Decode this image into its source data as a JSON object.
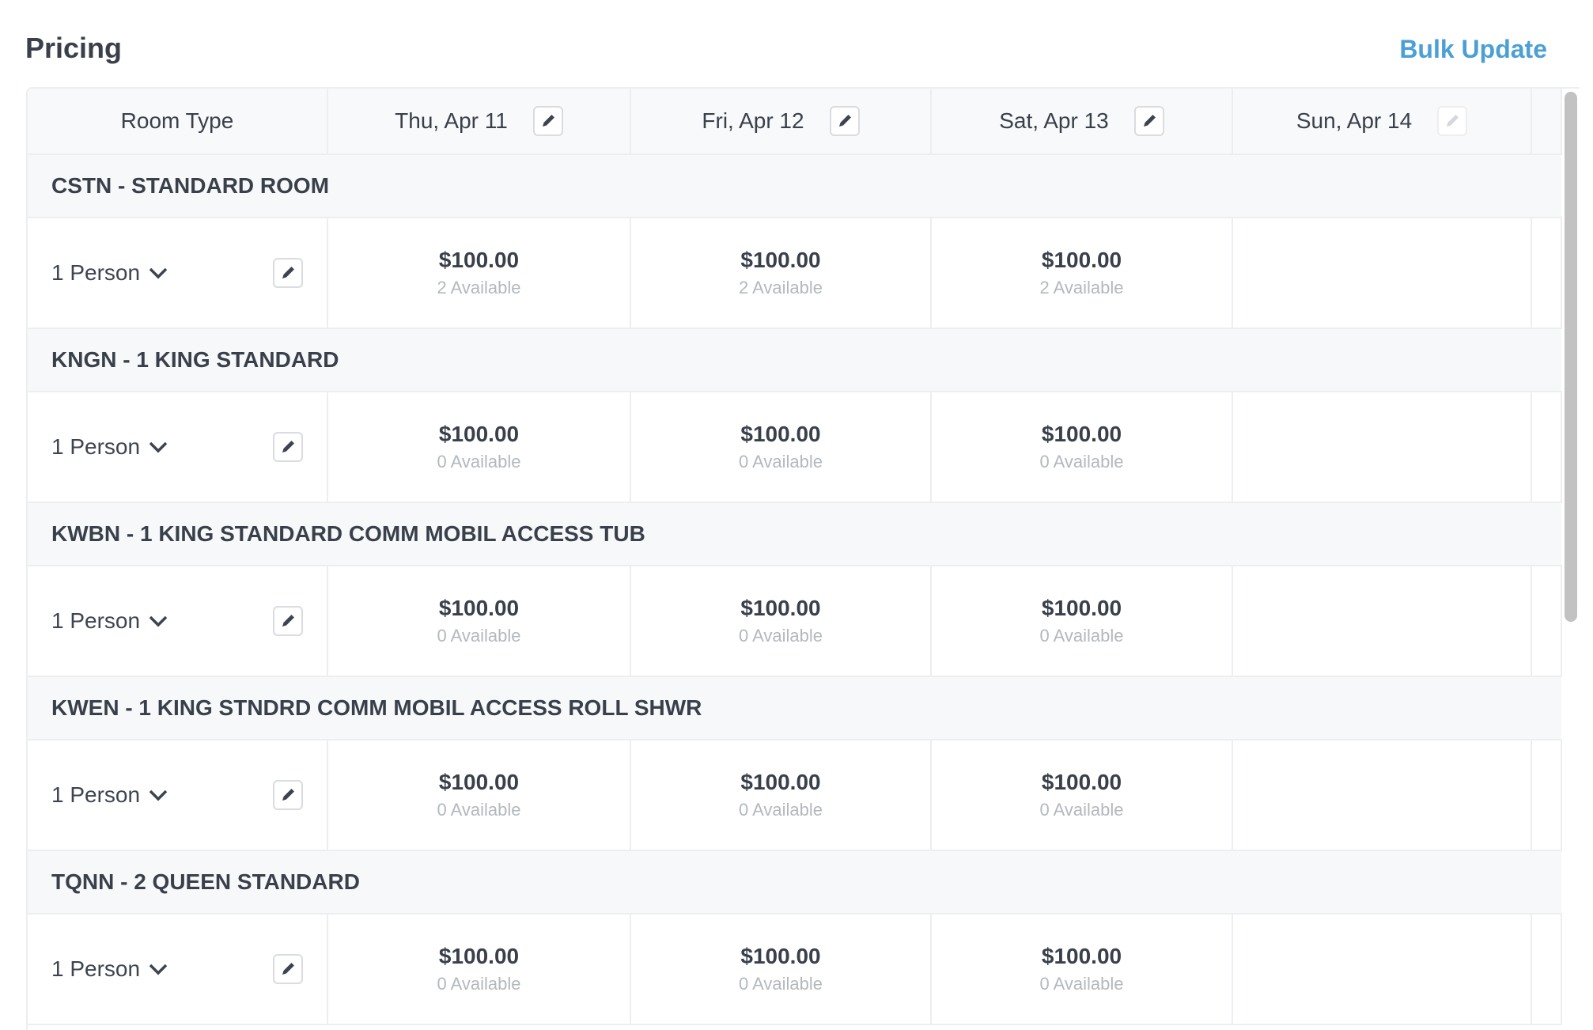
{
  "header": {
    "title": "Pricing",
    "bulk_update": "Bulk Update"
  },
  "table": {
    "room_type_header": "Room Type",
    "dates": [
      {
        "label": "Thu, Apr 11",
        "editable": true
      },
      {
        "label": "Fri, Apr 12",
        "editable": true
      },
      {
        "label": "Sat, Apr 13",
        "editable": true
      },
      {
        "label": "Sun, Apr 14",
        "editable": false
      }
    ],
    "groups": [
      {
        "name": "CSTN - STANDARD ROOM",
        "rate": "1 Person",
        "cells": [
          {
            "price": "$100.00",
            "avail": "2 Available"
          },
          {
            "price": "$100.00",
            "avail": "2 Available"
          },
          {
            "price": "$100.00",
            "avail": "2 Available"
          },
          {
            "price": "",
            "avail": ""
          }
        ]
      },
      {
        "name": "KNGN - 1 KING STANDARD",
        "rate": "1 Person",
        "cells": [
          {
            "price": "$100.00",
            "avail": "0 Available"
          },
          {
            "price": "$100.00",
            "avail": "0 Available"
          },
          {
            "price": "$100.00",
            "avail": "0 Available"
          },
          {
            "price": "",
            "avail": ""
          }
        ]
      },
      {
        "name": "KWBN - 1 KING STANDARD COMM MOBIL ACCESS TUB",
        "rate": "1 Person",
        "cells": [
          {
            "price": "$100.00",
            "avail": "0 Available"
          },
          {
            "price": "$100.00",
            "avail": "0 Available"
          },
          {
            "price": "$100.00",
            "avail": "0 Available"
          },
          {
            "price": "",
            "avail": ""
          }
        ]
      },
      {
        "name": "KWEN - 1 KING STNDRD COMM MOBIL ACCESS ROLL SHWR",
        "rate": "1 Person",
        "cells": [
          {
            "price": "$100.00",
            "avail": "0 Available"
          },
          {
            "price": "$100.00",
            "avail": "0 Available"
          },
          {
            "price": "$100.00",
            "avail": "0 Available"
          },
          {
            "price": "",
            "avail": ""
          }
        ]
      },
      {
        "name": "TQNN - 2 QUEEN STANDARD",
        "rate": "1 Person",
        "cells": [
          {
            "price": "$100.00",
            "avail": "0 Available"
          },
          {
            "price": "$100.00",
            "avail": "0 Available"
          },
          {
            "price": "$100.00",
            "avail": "0 Available"
          },
          {
            "price": "",
            "avail": ""
          }
        ]
      }
    ]
  },
  "colors": {
    "accent": "#4a9fd5",
    "text": "#3d4451",
    "muted": "#b3b8be",
    "border": "#eceef0"
  },
  "icons": {
    "edit": "pencil-icon",
    "expand": "chevron-down-icon"
  }
}
